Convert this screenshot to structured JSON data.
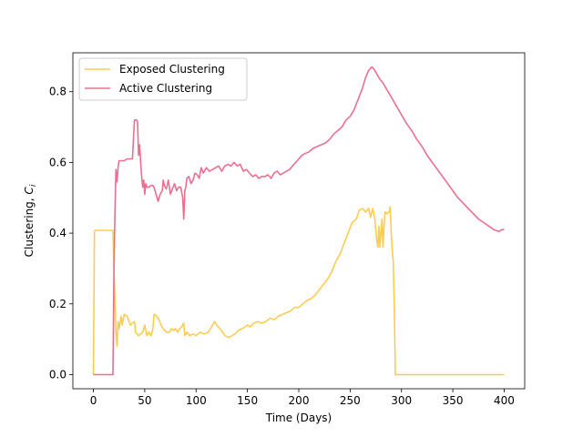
{
  "chart_data": {
    "type": "line",
    "title": "",
    "xlabel": "Time (Days)",
    "ylabel": "Clustering, ",
    "ylabel_symbol": "C",
    "ylabel_subscript": "i",
    "xlim": [
      -20,
      420
    ],
    "ylim": [
      -0.04,
      0.91
    ],
    "xticks": [
      0,
      50,
      100,
      150,
      200,
      250,
      300,
      350,
      400
    ],
    "xtick_labels": [
      "0",
      "50",
      "100",
      "150",
      "200",
      "250",
      "300",
      "350",
      "400"
    ],
    "yticks": [
      0.0,
      0.2,
      0.4,
      0.6,
      0.8
    ],
    "ytick_labels": [
      "0.0",
      "0.2",
      "0.4",
      "0.6",
      "0.8"
    ],
    "legend_position": "upper left",
    "grid": false,
    "series": [
      {
        "name": "Exposed Clustering",
        "color": "#fdcc4f",
        "x": [
          0,
          1,
          2,
          19,
          20,
          22,
          23,
          24,
          25,
          27,
          28,
          30,
          33,
          36,
          40,
          41,
          44,
          48,
          50,
          52,
          54,
          56,
          58,
          59,
          60,
          63,
          66,
          68,
          71,
          74,
          76,
          78,
          80,
          82,
          84,
          86,
          88,
          89,
          91,
          94,
          97,
          100,
          104,
          108,
          112,
          116,
          118,
          120,
          123,
          126,
          128,
          132,
          135,
          138,
          141,
          145,
          150,
          153,
          156,
          160,
          164,
          168,
          172,
          176,
          180,
          184,
          188,
          192,
          196,
          200,
          204,
          208,
          212,
          216,
          220,
          224,
          228,
          232,
          236,
          240,
          244,
          248,
          252,
          256,
          259,
          262,
          265,
          268,
          270,
          272,
          274,
          276,
          277,
          278,
          279,
          280,
          281,
          282,
          283,
          284,
          286,
          288,
          289,
          290,
          291,
          292,
          293,
          294,
          300,
          320,
          350,
          380,
          400
        ],
        "y": [
          0.0,
          0.405,
          0.408,
          0.408,
          0.3,
          0.12,
          0.08,
          0.15,
          0.13,
          0.165,
          0.14,
          0.17,
          0.165,
          0.14,
          0.15,
          0.12,
          0.11,
          0.12,
          0.14,
          0.11,
          0.12,
          0.11,
          0.13,
          0.17,
          0.17,
          0.16,
          0.14,
          0.13,
          0.12,
          0.12,
          0.13,
          0.125,
          0.13,
          0.12,
          0.13,
          0.135,
          0.145,
          0.11,
          0.12,
          0.11,
          0.115,
          0.11,
          0.12,
          0.115,
          0.12,
          0.14,
          0.15,
          0.14,
          0.13,
          0.12,
          0.11,
          0.105,
          0.11,
          0.115,
          0.125,
          0.13,
          0.14,
          0.135,
          0.145,
          0.15,
          0.145,
          0.15,
          0.16,
          0.155,
          0.165,
          0.17,
          0.175,
          0.18,
          0.19,
          0.19,
          0.2,
          0.21,
          0.215,
          0.225,
          0.24,
          0.255,
          0.27,
          0.29,
          0.32,
          0.34,
          0.37,
          0.4,
          0.43,
          0.44,
          0.465,
          0.47,
          0.46,
          0.47,
          0.445,
          0.47,
          0.44,
          0.38,
          0.36,
          0.42,
          0.36,
          0.4,
          0.44,
          0.36,
          0.42,
          0.46,
          0.455,
          0.46,
          0.475,
          0.4,
          0.35,
          0.32,
          0.2,
          0.0,
          0.0,
          0.0,
          0.0,
          0.0,
          0.0
        ]
      },
      {
        "name": "Active Clustering",
        "color": "#eb6f8f",
        "x": [
          0,
          18,
          19,
          20,
          21,
          22,
          23,
          24,
          25,
          30,
          33,
          36,
          38,
          40,
          42,
          43,
          44,
          45,
          46,
          47,
          48,
          49,
          50,
          51,
          52,
          54,
          56,
          58,
          59,
          61,
          63,
          65,
          67,
          68,
          69,
          71,
          73,
          75,
          77,
          79,
          81,
          83,
          85,
          87,
          88,
          89,
          90,
          91,
          93,
          95,
          97,
          99,
          101,
          103,
          105,
          107,
          110,
          113,
          116,
          119,
          122,
          125,
          128,
          131,
          134,
          137,
          140,
          143,
          146,
          149,
          152,
          155,
          158,
          161,
          164,
          167,
          170,
          173,
          176,
          179,
          182,
          185,
          188,
          191,
          194,
          197,
          200,
          203,
          206,
          210,
          214,
          218,
          222,
          226,
          230,
          234,
          238,
          242,
          246,
          250,
          254,
          258,
          262,
          265,
          268,
          271,
          273,
          276,
          279,
          282,
          286,
          290,
          295,
          300,
          305,
          310,
          315,
          320,
          325,
          330,
          335,
          340,
          345,
          350,
          355,
          360,
          365,
          370,
          375,
          380,
          385,
          390,
          395,
          398,
          400
        ],
        "y": [
          0.0,
          0.0,
          0.0,
          0.3,
          0.46,
          0.58,
          0.545,
          0.585,
          0.605,
          0.605,
          0.61,
          0.61,
          0.61,
          0.72,
          0.72,
          0.715,
          0.62,
          0.65,
          0.6,
          0.56,
          0.53,
          0.55,
          0.51,
          0.54,
          0.53,
          0.53,
          0.535,
          0.535,
          0.53,
          0.51,
          0.49,
          0.51,
          0.52,
          0.55,
          0.535,
          0.525,
          0.55,
          0.51,
          0.525,
          0.54,
          0.52,
          0.53,
          0.53,
          0.5,
          0.44,
          0.52,
          0.53,
          0.555,
          0.56,
          0.54,
          0.55,
          0.57,
          0.565,
          0.555,
          0.585,
          0.57,
          0.585,
          0.575,
          0.58,
          0.585,
          0.59,
          0.575,
          0.59,
          0.595,
          0.59,
          0.6,
          0.59,
          0.595,
          0.575,
          0.58,
          0.57,
          0.56,
          0.565,
          0.555,
          0.56,
          0.56,
          0.565,
          0.555,
          0.57,
          0.575,
          0.565,
          0.57,
          0.575,
          0.58,
          0.59,
          0.6,
          0.61,
          0.62,
          0.625,
          0.63,
          0.64,
          0.645,
          0.65,
          0.655,
          0.665,
          0.68,
          0.69,
          0.7,
          0.72,
          0.73,
          0.75,
          0.78,
          0.81,
          0.84,
          0.86,
          0.87,
          0.865,
          0.85,
          0.835,
          0.825,
          0.805,
          0.785,
          0.76,
          0.735,
          0.71,
          0.69,
          0.665,
          0.645,
          0.62,
          0.6,
          0.58,
          0.56,
          0.54,
          0.52,
          0.5,
          0.485,
          0.47,
          0.455,
          0.44,
          0.43,
          0.42,
          0.41,
          0.405,
          0.41,
          0.41
        ]
      }
    ]
  }
}
